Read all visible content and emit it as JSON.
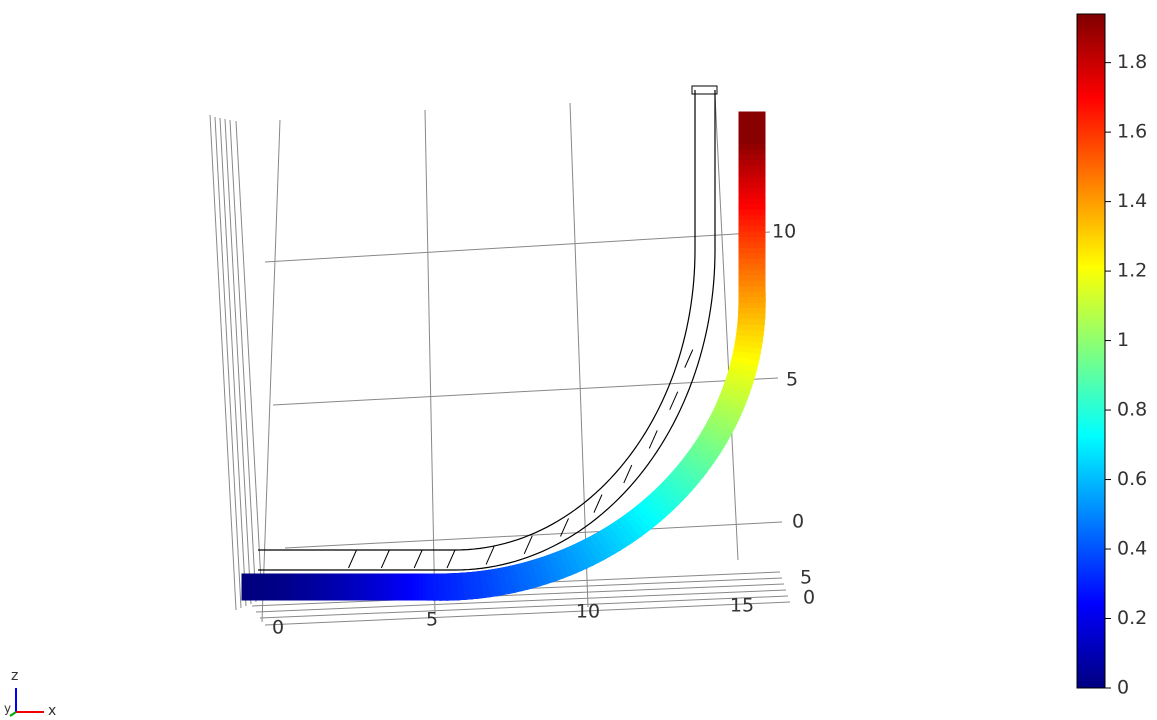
{
  "chart_data": {
    "type": "surface3d",
    "xticks": [
      0,
      5,
      10,
      15
    ],
    "yticks": [
      0,
      5
    ],
    "zticks": [
      0,
      5,
      10
    ],
    "triad": [
      "z",
      "y",
      "x"
    ],
    "colorbar": {
      "lim": [
        0,
        1.94
      ],
      "ticks": [
        0,
        0.2,
        0.4,
        0.6,
        0.8,
        1,
        1.2,
        1.4,
        1.6,
        1.8
      ],
      "colormap": [
        "#00007f",
        "#0000ff",
        "#007fff",
        "#00ffff",
        "#7fff7f",
        "#ffff00",
        "#ff7f00",
        "#ff0000",
        "#7f0000"
      ]
    }
  }
}
